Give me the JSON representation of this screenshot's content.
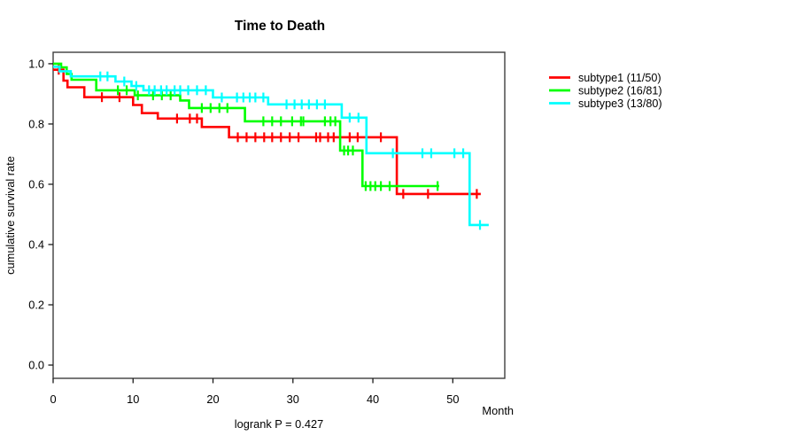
{
  "figure": {
    "title": "Time to Death",
    "x_axis_label": "Month",
    "y_axis_label": "cumulative survival rate",
    "footnote": "logrank P = 0.427"
  },
  "chart_data": {
    "type": "line",
    "subtype": "kaplan-meier-step-curves",
    "title": "Time to Death",
    "xlabel": "Month",
    "ylabel": "cumulative survival rate",
    "annotation": "logrank P = 0.427",
    "x_ticks": [
      0,
      10,
      20,
      30,
      40,
      50
    ],
    "y_tick_labels": [
      "0.0",
      "0.2",
      "0.4",
      "0.6",
      "0.8",
      "1.0"
    ],
    "xlim": [
      0,
      56.5
    ],
    "ylim": [
      -0.044,
      1.038
    ],
    "grid": false,
    "legend_position": "right-outside",
    "axis_color": "#3f3f3f",
    "series": [
      {
        "name": "subtype1",
        "legend_label": "subtype1 (11/50)",
        "color": "#FF0000",
        "events_over_n": "11/50",
        "steps": [
          [
            0,
            0.98
          ],
          [
            1.3,
            0.944
          ],
          [
            1.8,
            0.922
          ],
          [
            3.9,
            0.889
          ],
          [
            10.0,
            0.863
          ],
          [
            11.1,
            0.836
          ],
          [
            13.1,
            0.818
          ],
          [
            18.6,
            0.79
          ],
          [
            22.0,
            0.756
          ],
          [
            43.0,
            0.568
          ]
        ],
        "end_time": 53.5,
        "censor_marks": [
          [
            0.7,
            0.98
          ],
          [
            6.1,
            0.889
          ],
          [
            8.3,
            0.889
          ],
          [
            15.5,
            0.818
          ],
          [
            17.1,
            0.818
          ],
          [
            18.0,
            0.818
          ],
          [
            23.1,
            0.756
          ],
          [
            24.2,
            0.756
          ],
          [
            25.3,
            0.756
          ],
          [
            26.4,
            0.756
          ],
          [
            27.4,
            0.756
          ],
          [
            28.5,
            0.756
          ],
          [
            29.6,
            0.756
          ],
          [
            30.7,
            0.756
          ],
          [
            32.9,
            0.756
          ],
          [
            33.4,
            0.756
          ],
          [
            34.4,
            0.756
          ],
          [
            35.1,
            0.756
          ],
          [
            37.1,
            0.756
          ],
          [
            38.1,
            0.756
          ],
          [
            41.0,
            0.756
          ],
          [
            43.8,
            0.568
          ],
          [
            46.9,
            0.568
          ],
          [
            53.0,
            0.568
          ]
        ]
      },
      {
        "name": "subtype2",
        "legend_label": "subtype2 (16/81)",
        "color": "#00FF00",
        "events_over_n": "16/81",
        "steps": [
          [
            0,
            1.0
          ],
          [
            1.0,
            0.988
          ],
          [
            1.7,
            0.966
          ],
          [
            2.3,
            0.947
          ],
          [
            5.4,
            0.912
          ],
          [
            10.2,
            0.895
          ],
          [
            15.9,
            0.878
          ],
          [
            17.0,
            0.853
          ],
          [
            24.0,
            0.809
          ],
          [
            35.9,
            0.712
          ],
          [
            38.7,
            0.594
          ]
        ],
        "end_time": 48.3,
        "censor_marks": [
          [
            8.1,
            0.912
          ],
          [
            9.2,
            0.912
          ],
          [
            10.6,
            0.895
          ],
          [
            12.5,
            0.895
          ],
          [
            13.6,
            0.895
          ],
          [
            14.7,
            0.895
          ],
          [
            18.6,
            0.853
          ],
          [
            19.7,
            0.853
          ],
          [
            20.8,
            0.853
          ],
          [
            21.8,
            0.853
          ],
          [
            26.3,
            0.809
          ],
          [
            27.4,
            0.809
          ],
          [
            28.5,
            0.809
          ],
          [
            29.9,
            0.809
          ],
          [
            31.0,
            0.809
          ],
          [
            31.3,
            0.809
          ],
          [
            34.0,
            0.809
          ],
          [
            34.7,
            0.809
          ],
          [
            35.3,
            0.809
          ],
          [
            36.4,
            0.712
          ],
          [
            36.9,
            0.712
          ],
          [
            37.5,
            0.712
          ],
          [
            39.1,
            0.594
          ],
          [
            39.7,
            0.594
          ],
          [
            40.3,
            0.594
          ],
          [
            41.0,
            0.594
          ],
          [
            42.1,
            0.594
          ],
          [
            48.1,
            0.594
          ]
        ]
      },
      {
        "name": "subtype3",
        "legend_label": "subtype3 (13/80)",
        "color": "#00FFFF",
        "events_over_n": "13/80",
        "steps": [
          [
            0,
            0.99
          ],
          [
            0.8,
            0.975
          ],
          [
            2.2,
            0.958
          ],
          [
            7.8,
            0.941
          ],
          [
            9.8,
            0.926
          ],
          [
            11.3,
            0.912
          ],
          [
            20.0,
            0.888
          ],
          [
            26.9,
            0.865
          ],
          [
            36.1,
            0.821
          ],
          [
            39.2,
            0.703
          ],
          [
            52.1,
            0.465
          ]
        ],
        "end_time": 54.5,
        "censor_marks": [
          [
            5.9,
            0.958
          ],
          [
            6.8,
            0.958
          ],
          [
            8.9,
            0.941
          ],
          [
            10.4,
            0.926
          ],
          [
            12.0,
            0.912
          ],
          [
            12.7,
            0.912
          ],
          [
            13.5,
            0.912
          ],
          [
            14.2,
            0.912
          ],
          [
            15.2,
            0.912
          ],
          [
            15.9,
            0.912
          ],
          [
            16.9,
            0.912
          ],
          [
            18.0,
            0.912
          ],
          [
            19.1,
            0.912
          ],
          [
            21.1,
            0.888
          ],
          [
            23.0,
            0.888
          ],
          [
            23.8,
            0.888
          ],
          [
            24.6,
            0.888
          ],
          [
            25.3,
            0.888
          ],
          [
            26.3,
            0.888
          ],
          [
            29.2,
            0.865
          ],
          [
            30.2,
            0.865
          ],
          [
            31.1,
            0.865
          ],
          [
            32.0,
            0.865
          ],
          [
            33.0,
            0.865
          ],
          [
            34.0,
            0.865
          ],
          [
            37.1,
            0.821
          ],
          [
            38.2,
            0.821
          ],
          [
            42.5,
            0.703
          ],
          [
            46.2,
            0.703
          ],
          [
            47.3,
            0.703
          ],
          [
            50.2,
            0.703
          ],
          [
            51.3,
            0.703
          ],
          [
            53.4,
            0.465
          ]
        ]
      }
    ]
  }
}
